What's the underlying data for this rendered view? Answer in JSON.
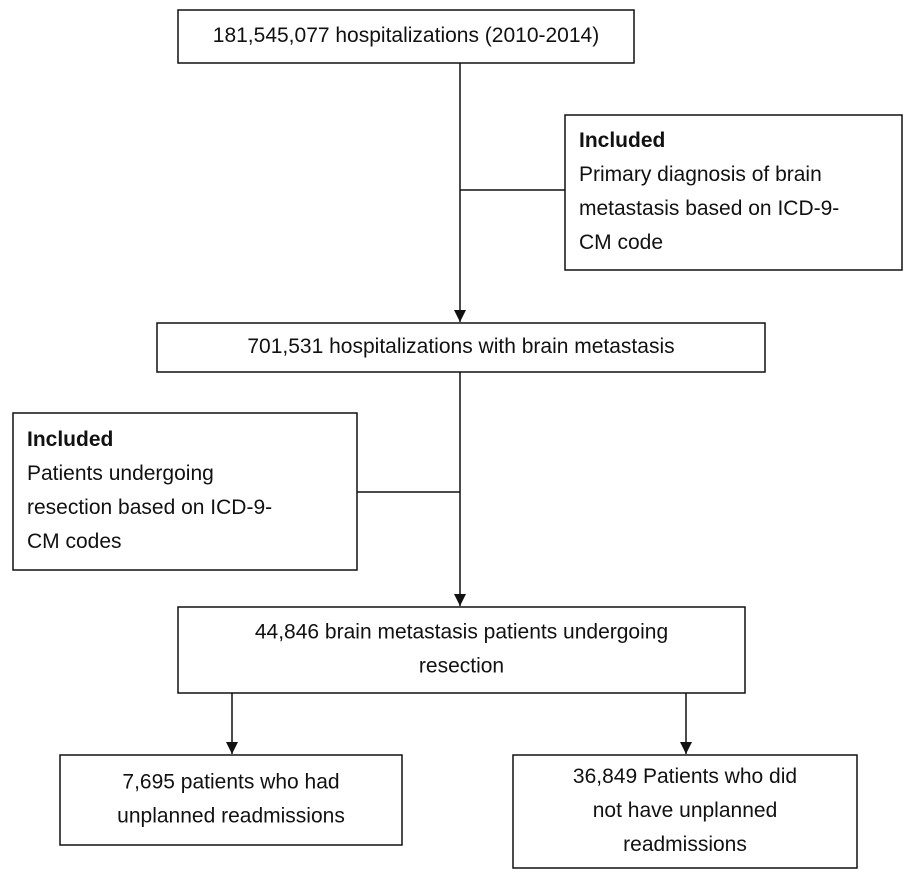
{
  "boxes": [
    {
      "lines": [
        "181,545,077 hospitalizations (2010-2014)"
      ]
    },
    {
      "heading": "Included",
      "lines": [
        "Primary diagnosis of brain",
        "metastasis based on ICD-9-",
        "CM code"
      ]
    },
    {
      "lines": [
        "701,531 hospitalizations with brain metastasis"
      ]
    },
    {
      "heading": "Included",
      "lines": [
        "Patients undergoing",
        "resection based on ICD-9-",
        "CM codes"
      ]
    },
    {
      "lines": [
        "44,846 brain metastasis patients undergoing",
        "resection"
      ]
    },
    {
      "lines": [
        "7,695 patients who had",
        "unplanned readmissions"
      ]
    },
    {
      "lines": [
        "36,849 Patients who did",
        "not have unplanned",
        "readmissions"
      ]
    }
  ]
}
